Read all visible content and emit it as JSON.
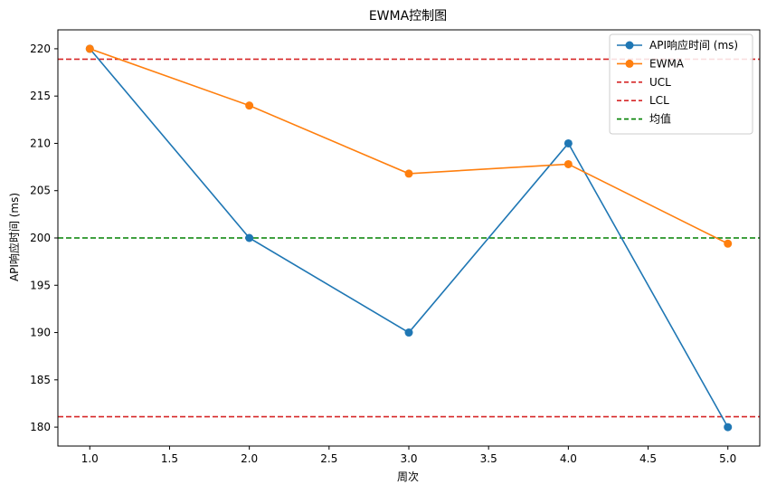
{
  "chart_data": {
    "type": "line",
    "title": "EWMA控制图",
    "xlabel": "周次",
    "ylabel": "API响应时间 (ms)",
    "x": [
      1.0,
      2.0,
      3.0,
      4.0,
      5.0
    ],
    "xlim": [
      0.8,
      5.2
    ],
    "ylim": [
      178.0,
      222.0
    ],
    "xticks": [
      1.0,
      1.5,
      2.0,
      2.5,
      3.0,
      3.5,
      4.0,
      4.5,
      5.0
    ],
    "xtick_labels": [
      "1.0",
      "1.5",
      "2.0",
      "2.5",
      "3.0",
      "3.5",
      "4.0",
      "4.5",
      "5.0"
    ],
    "yticks": [
      180,
      185,
      190,
      195,
      200,
      205,
      210,
      215,
      220
    ],
    "ytick_labels": [
      "180",
      "185",
      "190",
      "195",
      "200",
      "205",
      "210",
      "215",
      "220"
    ],
    "grid": false,
    "legend_position": "top-right",
    "series": [
      {
        "name": "API响应时间 (ms)",
        "values": [
          220,
          200,
          190,
          210,
          180
        ],
        "color": "#1f77b4",
        "style": "solid",
        "marker": "circle"
      },
      {
        "name": "EWMA",
        "values": [
          220,
          214,
          206.8,
          207.8,
          199.4
        ],
        "color": "#ff7f0e",
        "style": "solid",
        "marker": "circle"
      }
    ],
    "reference_lines": [
      {
        "name": "UCL",
        "value": 218.9,
        "color": "#d62728",
        "style": "dashed"
      },
      {
        "name": "LCL",
        "value": 181.1,
        "color": "#d62728",
        "style": "dashed"
      },
      {
        "name": "均值",
        "value": 200.0,
        "color": "#008000",
        "style": "dashed"
      }
    ]
  }
}
